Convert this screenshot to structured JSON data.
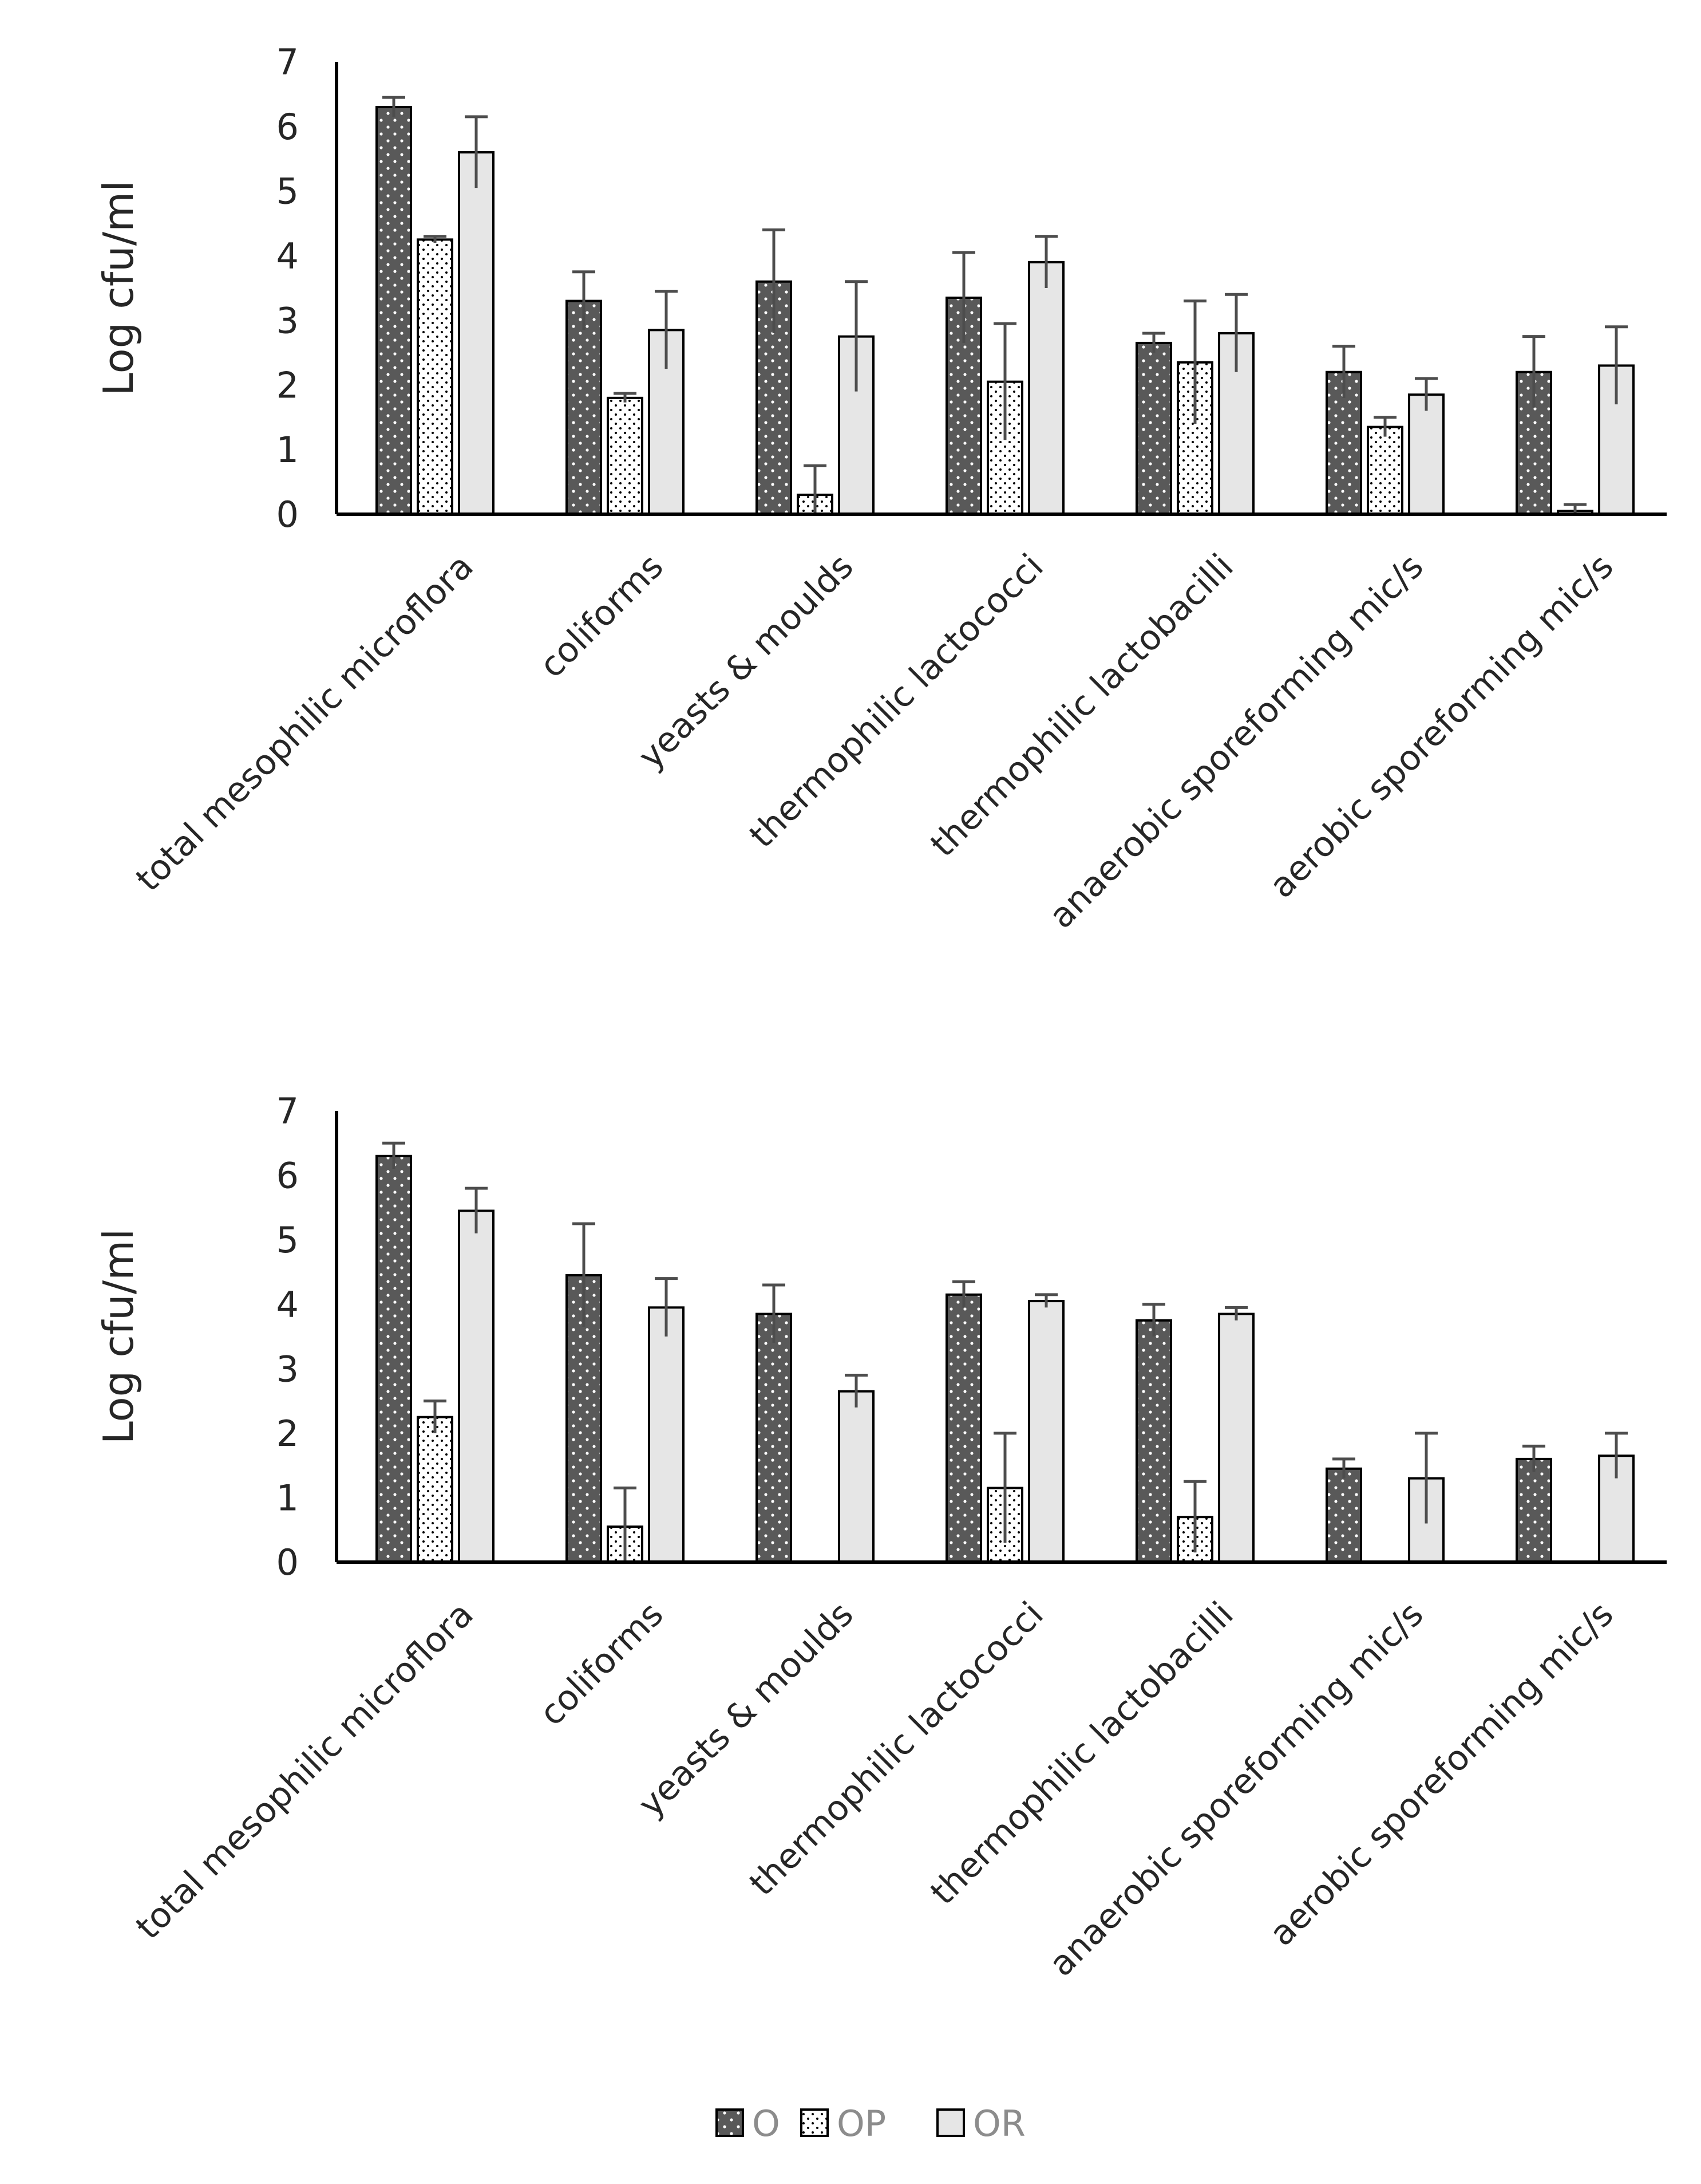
{
  "chart_data": [
    {
      "type": "bar",
      "ylabel": "Log cfu/ml",
      "ylim": [
        0,
        7
      ],
      "yticks": [
        "0",
        "1",
        "2",
        "3",
        "4",
        "5",
        "6",
        "7"
      ],
      "categories": [
        "total mesophilic microflora",
        "coliforms",
        "yeasts & moulds",
        "thermophilic lactococci",
        "thermophilic lactobacilli",
        "anaerobic sporeforming mic/s",
        "aerobic sporeforming mic/s"
      ],
      "series": [
        {
          "name": "O",
          "values": [
            6.3,
            3.3,
            3.6,
            3.35,
            2.65,
            2.2,
            2.2
          ],
          "errors": [
            0.15,
            0.45,
            0.8,
            0.7,
            0.15,
            0.4,
            0.55
          ]
        },
        {
          "name": "OP",
          "values": [
            4.25,
            1.8,
            0.3,
            2.05,
            2.35,
            1.35,
            0.05
          ],
          "errors": [
            0.05,
            0.07,
            0.45,
            0.9,
            0.95,
            0.15,
            0.1
          ]
        },
        {
          "name": "OR",
          "values": [
            5.6,
            2.85,
            2.75,
            3.9,
            2.8,
            1.85,
            2.3
          ],
          "errors": [
            0.55,
            0.6,
            0.85,
            0.4,
            0.6,
            0.25,
            0.6
          ]
        }
      ],
      "grid": false,
      "legend": "bottom-center"
    },
    {
      "type": "bar",
      "ylabel": "Log cfu/ml",
      "ylim": [
        0,
        7
      ],
      "yticks": [
        "0",
        "1",
        "2",
        "3",
        "4",
        "5",
        "6",
        "7"
      ],
      "categories": [
        "total mesophilic microflora",
        "coliforms",
        "yeasts & moulds",
        "thermophilic lactococci",
        "thermophilic lactobacilli",
        "anaerobic sporeforming mic/s",
        "aerobic sporeforming mic/s"
      ],
      "series": [
        {
          "name": "O",
          "values": [
            6.3,
            4.45,
            3.85,
            4.15,
            3.75,
            1.45,
            1.6
          ],
          "errors": [
            0.2,
            0.8,
            0.45,
            0.2,
            0.25,
            0.15,
            0.2
          ]
        },
        {
          "name": "OP",
          "values": [
            2.25,
            0.55,
            0,
            1.15,
            0.7,
            0,
            0
          ],
          "errors": [
            0.25,
            0.6,
            0,
            0.85,
            0.55,
            0,
            0
          ]
        },
        {
          "name": "OR",
          "values": [
            5.45,
            3.95,
            2.65,
            4.05,
            3.85,
            1.3,
            1.65
          ],
          "errors": [
            0.35,
            0.45,
            0.25,
            0.1,
            0.1,
            0.7,
            0.35
          ]
        }
      ],
      "grid": false,
      "legend": "bottom-center"
    }
  ],
  "legend": {
    "items": [
      {
        "name": "O",
        "fill": "#595959",
        "pattern": "dots-white"
      },
      {
        "name": "OP",
        "fill": "#ffffff",
        "pattern": "dots-black"
      },
      {
        "name": "OR",
        "fill": "#e6e6e6",
        "pattern": "none"
      }
    ]
  },
  "colors": {
    "axis": "#000000",
    "bar_outline": "#000000",
    "error_bar": "#4d4d4d",
    "text": "#262626",
    "legend_text": "#8c8c8c"
  }
}
